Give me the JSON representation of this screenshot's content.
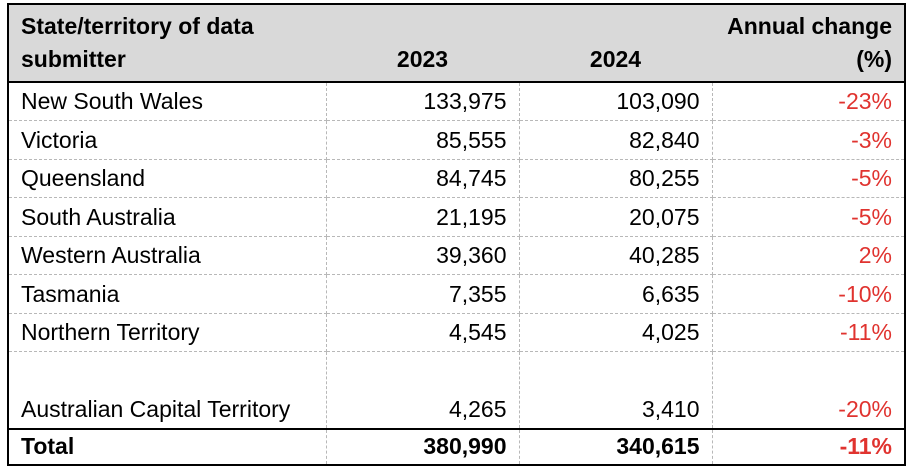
{
  "colors": {
    "header_bg": "#d9d9d9",
    "negative": "#e0332f",
    "border": "#000000"
  },
  "headers": {
    "state": "State/territory of data submitter",
    "y2023": "2023",
    "y2024": "2024",
    "change": "Annual change (%)"
  },
  "rows": [
    {
      "state": "New South Wales",
      "y2023": "133,975",
      "y2024": "103,090",
      "change": "-23%"
    },
    {
      "state": "Victoria",
      "y2023": "85,555",
      "y2024": "82,840",
      "change": "-3%"
    },
    {
      "state": "Queensland",
      "y2023": "84,745",
      "y2024": "80,255",
      "change": "-5%"
    },
    {
      "state": "South Australia",
      "y2023": "21,195",
      "y2024": "20,075",
      "change": "-5%"
    },
    {
      "state": "Western Australia",
      "y2023": "39,360",
      "y2024": "40,285",
      "change": "2%"
    },
    {
      "state": "Tasmania",
      "y2023": "7,355",
      "y2024": "6,635",
      "change": "-10%"
    },
    {
      "state": "Northern Territory",
      "y2023": "4,545",
      "y2024": "4,025",
      "change": "-11%"
    },
    {
      "state": "Australian Capital Territory",
      "y2023": "4,265",
      "y2024": "3,410",
      "change": "-20%"
    }
  ],
  "total": {
    "label": "Total",
    "y2023": "380,990",
    "y2024": "340,615",
    "change": "-11%"
  }
}
